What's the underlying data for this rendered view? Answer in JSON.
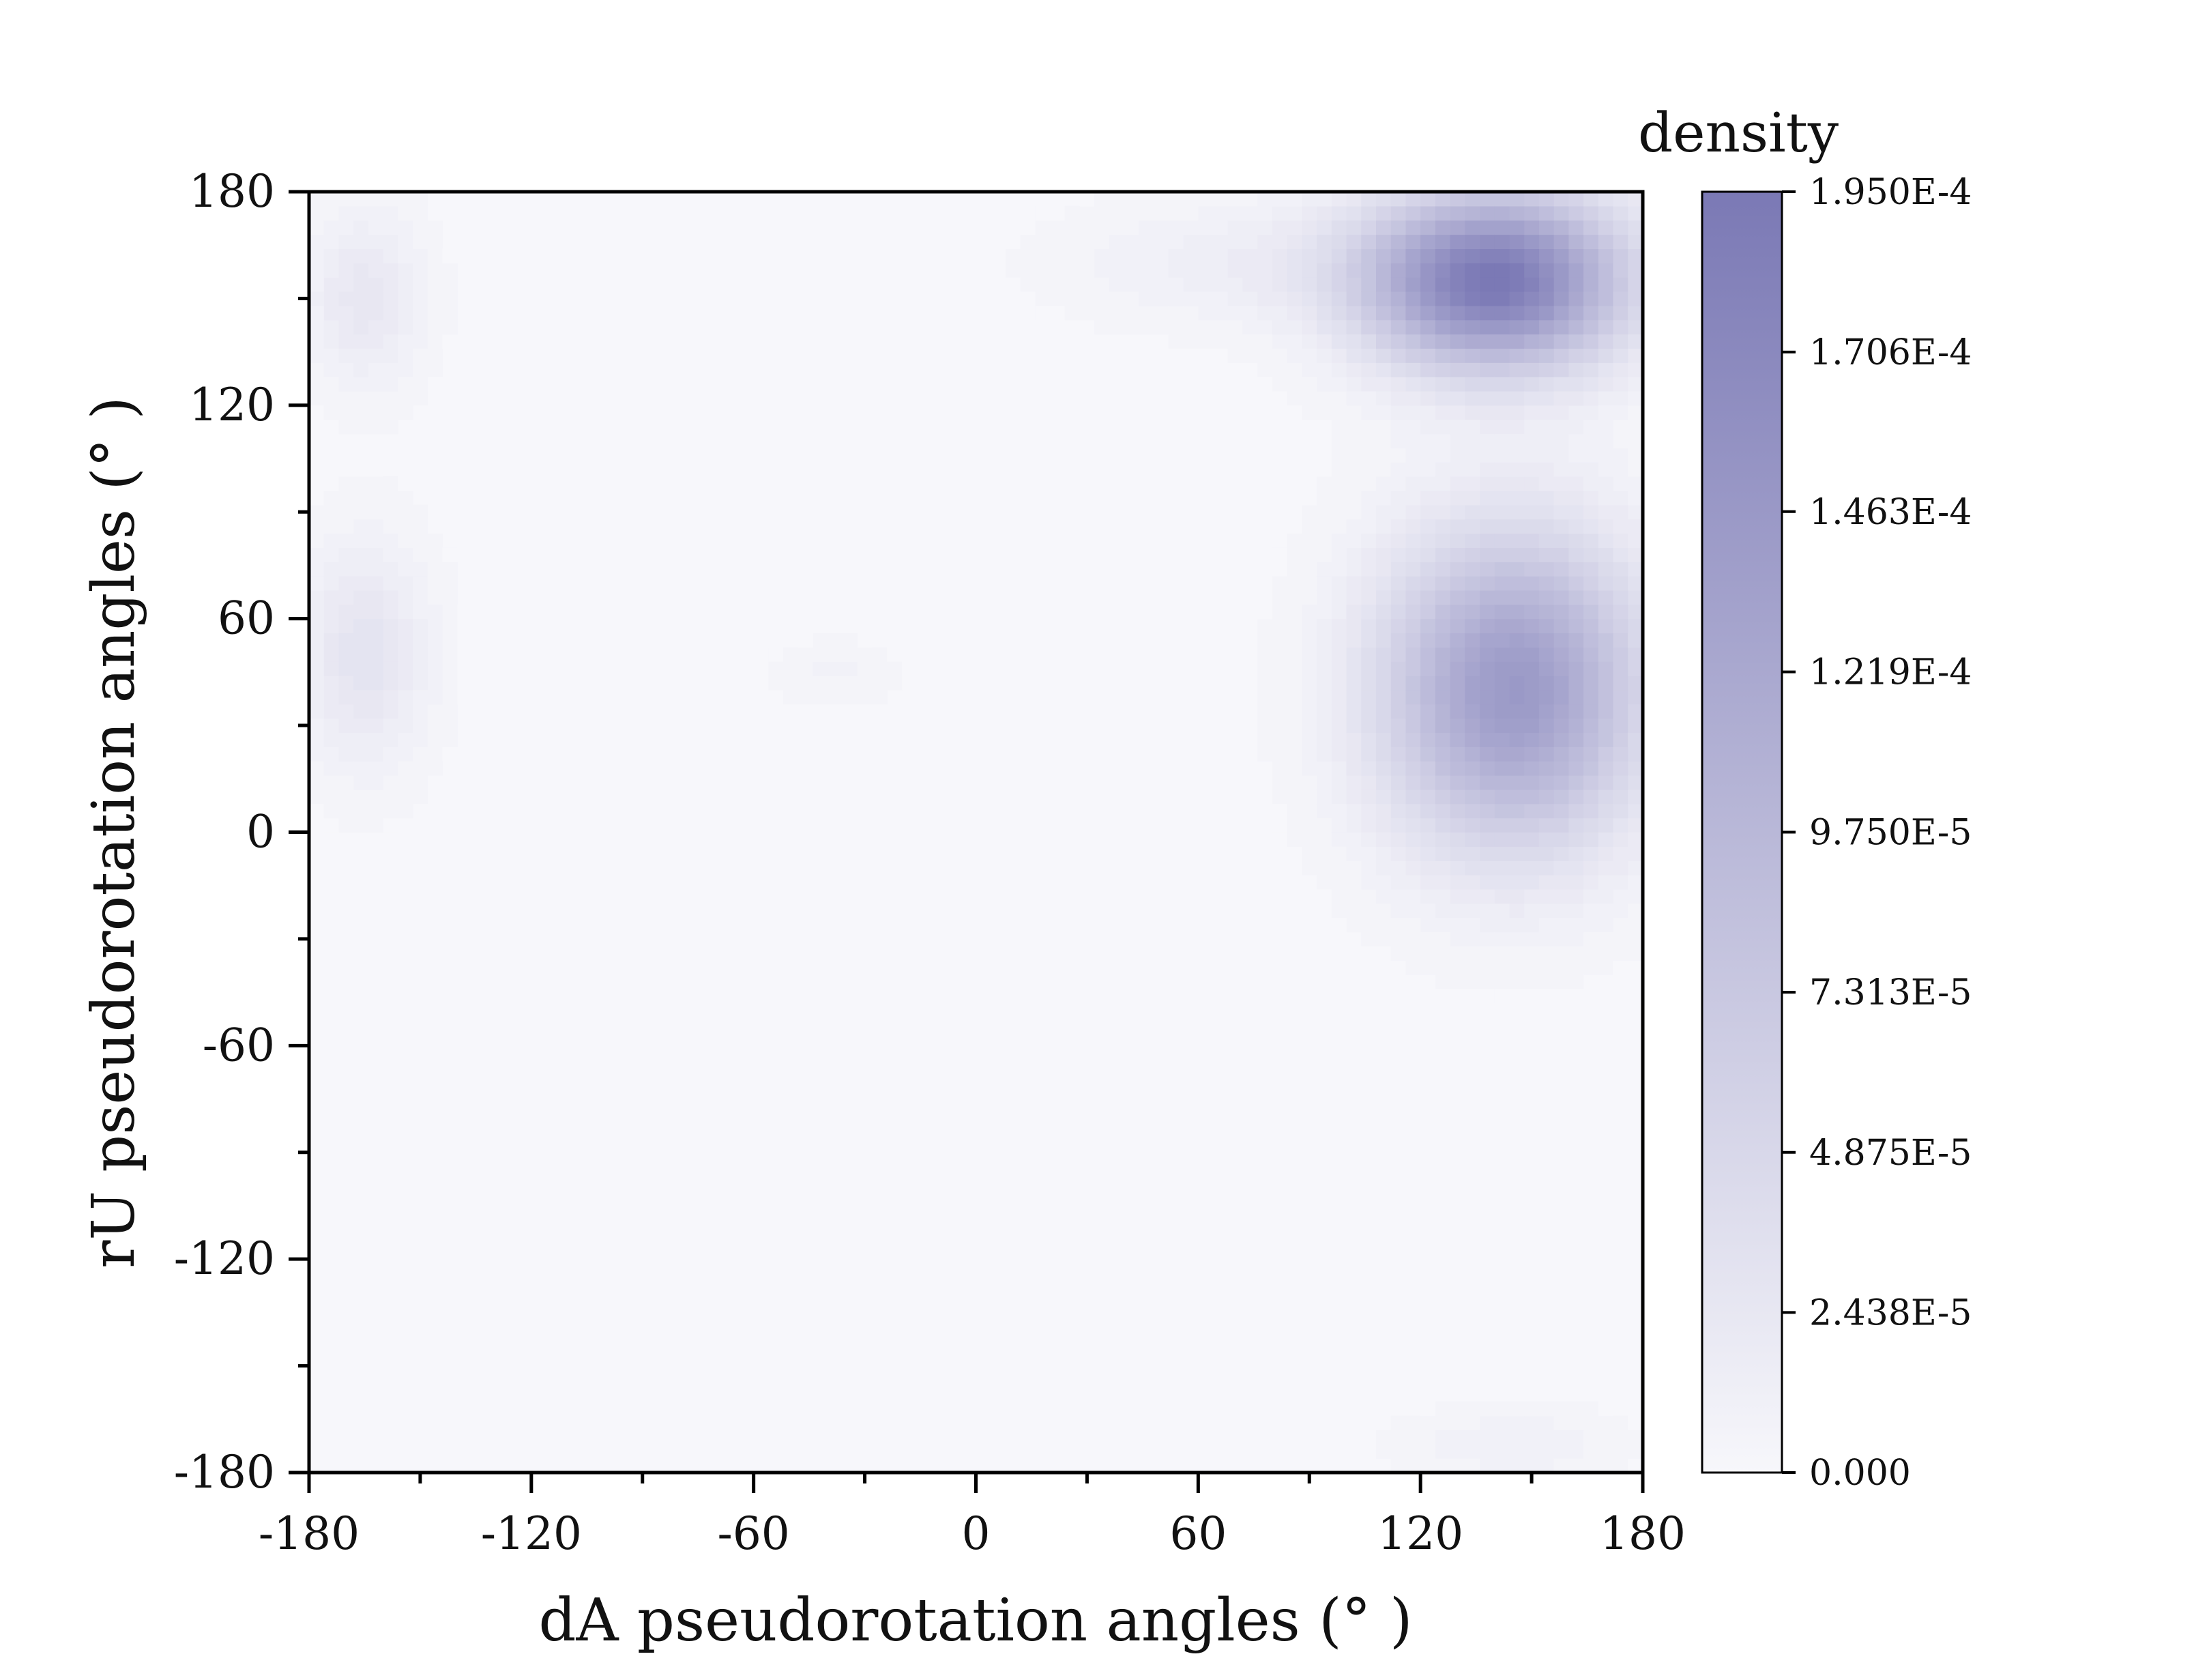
{
  "chart_data": {
    "type": "heatmap",
    "subtype": "filled-contour-density",
    "xlabel": "dA pseudorotation angles (° )",
    "ylabel": "rU pseudorotation angles (° )",
    "xlim": [
      -180,
      180
    ],
    "ylim": [
      -180,
      180
    ],
    "xticks": [
      "-180",
      "-120",
      "-60",
      "0",
      "60",
      "120",
      "180"
    ],
    "yticks": [
      "-180",
      "-120",
      "-60",
      "0",
      "60",
      "120",
      "180"
    ],
    "x_tick_values": [
      -180,
      -120,
      -60,
      0,
      60,
      120,
      180
    ],
    "y_tick_values": [
      -180,
      -120,
      -60,
      0,
      60,
      120,
      180
    ],
    "grid": false,
    "colorbar": {
      "title": "density",
      "min": 0,
      "max": 0.000195,
      "labels": [
        "0.000",
        "2.438E-5",
        "4.875E-5",
        "7.313E-5",
        "9.750E-5",
        "1.219E-4",
        "1.463E-4",
        "1.706E-4",
        "1.950E-4"
      ],
      "label_values": [
        0,
        2.438e-05,
        4.875e-05,
        7.313e-05,
        9.75e-05,
        0.0001219,
        0.0001463,
        0.0001706,
        0.000195
      ],
      "color_low": "#f7f7fb",
      "color_high": "#7b79b5"
    },
    "density_peaks": [
      {
        "x": 140,
        "y": 155,
        "density": 0.000195
      },
      {
        "x": 145,
        "y": 40,
        "density": 0.000145
      },
      {
        "x": -165,
        "y": 150,
        "density": 2.5e-05
      },
      {
        "x": -165,
        "y": 50,
        "density": 3e-05
      },
      {
        "x": 145,
        "y": -172,
        "density": 1.2e-05
      },
      {
        "x": -38,
        "y": 45,
        "density": 8e-06
      },
      {
        "x": 75,
        "y": 160,
        "density": 1.5e-05
      }
    ]
  }
}
